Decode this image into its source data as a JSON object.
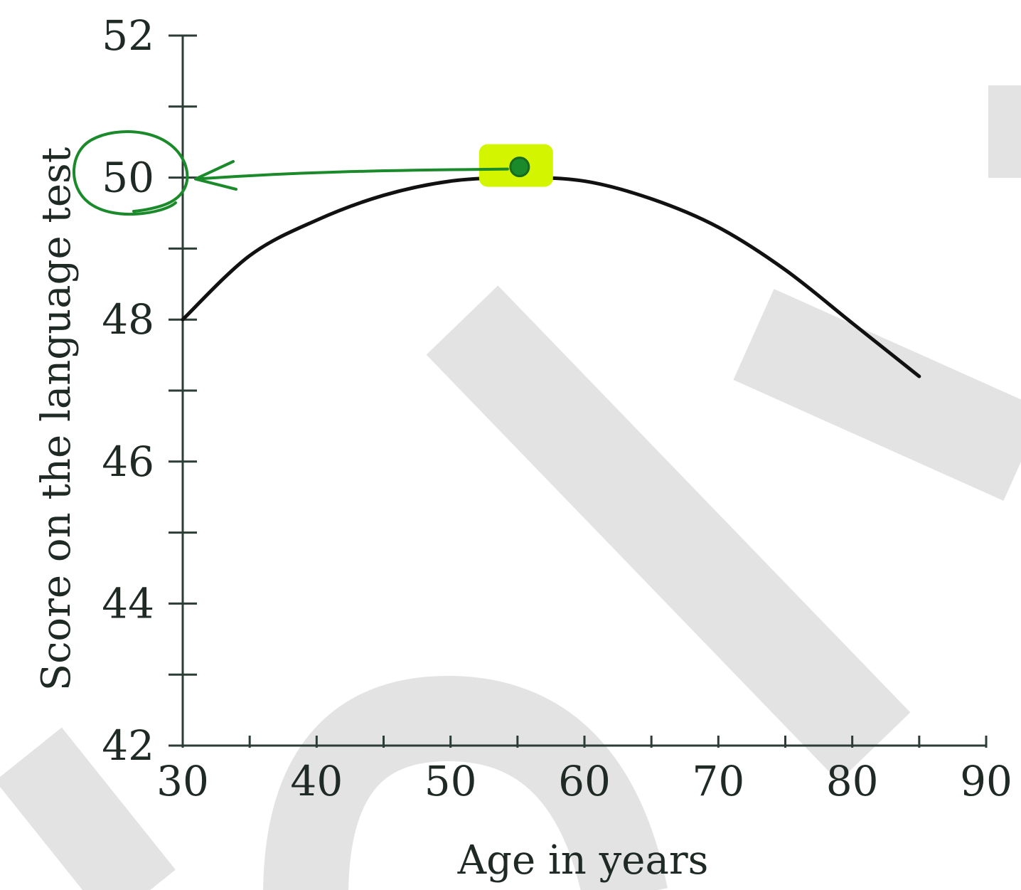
{
  "chart_data": {
    "type": "line",
    "xlabel": "Age in years",
    "ylabel": "Score on the language test",
    "xlim": [
      30,
      90
    ],
    "ylim": [
      42,
      52
    ],
    "x_ticks": [
      30,
      40,
      50,
      60,
      70,
      80,
      90
    ],
    "x_tick_labels": [
      "30",
      "40",
      "50",
      "60",
      "70",
      "80",
      "90"
    ],
    "x_minor_ticks": [
      35,
      45,
      55,
      65,
      75,
      85
    ],
    "y_ticks": [
      42,
      44,
      46,
      48,
      50,
      52
    ],
    "y_tick_labels": [
      "42",
      "44",
      "46",
      "48",
      "50",
      "52"
    ],
    "y_minor_ticks": [
      43,
      45,
      47,
      49,
      51
    ],
    "grid": false,
    "series": [
      {
        "x": [
          30,
          35,
          40,
          45,
          50,
          55,
          60,
          65,
          70,
          75,
          80,
          85
        ],
        "y": [
          48.0,
          48.9,
          49.4,
          49.75,
          49.95,
          50.0,
          49.95,
          49.7,
          49.3,
          48.7,
          47.95,
          47.2
        ]
      }
    ],
    "annotations": {
      "highlighted_point": {
        "x": 55,
        "y": 50.0
      },
      "circled_tick_label": "50",
      "arrow_from_point_to_y_axis": true,
      "highlight_color": "#d4f500",
      "pen_color": "#1a8a2a"
    }
  }
}
